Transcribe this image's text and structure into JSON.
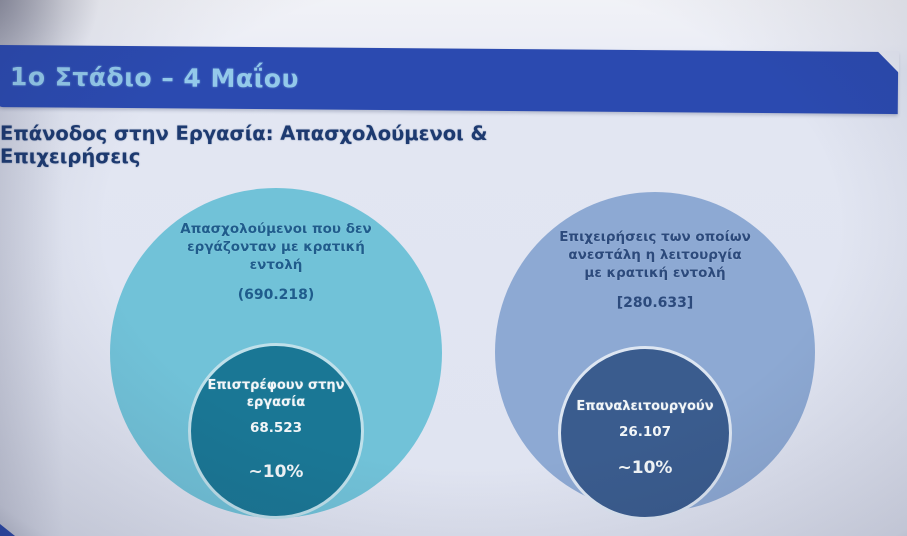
{
  "slide": {
    "title": "1ο Στάδιο – 4 Μαΐου",
    "subtitle": "Επάνοδος στην Εργασία: Απασχολούμενοι & Επιχειρήσεις"
  },
  "venn": {
    "left": {
      "outer_label_lines": [
        "Απασχολούμενοι που δεν",
        "εργάζονταν με κρατική",
        "εντολή"
      ],
      "outer_value": "(690.218)",
      "inner_label_lines": [
        "Επιστρέφουν στην",
        "εργασία"
      ],
      "inner_value": "68.523",
      "inner_share": "~10%"
    },
    "right": {
      "outer_label_lines": [
        "Επιχειρήσεις των οποίων",
        "ανεστάλη η λειτουργία",
        "με κρατική εντολή"
      ],
      "outer_value": "[280.633]",
      "inner_label_lines": [
        "Επαναλειτουργούν"
      ],
      "inner_value": "26.107",
      "inner_share": "~10%"
    }
  },
  "colors": {
    "title_bar": "#2b4ab0",
    "title_text": "#93c9ea",
    "subtitle_text": "#1d3a70",
    "left_outer_circle": "#71c2d8",
    "left_inner_circle": "#1a7795",
    "left_outer_text": "#1f5c8c",
    "right_outer_circle": "#8da9d3",
    "right_inner_circle": "#3a5c8e",
    "right_outer_text": "#2c4a7c",
    "inner_text": "#f2f6f8"
  },
  "chart_data": {
    "type": "nested-circles",
    "title": "Επάνοδος στην Εργασία: Απασχολούμενοι & Επιχειρήσεις",
    "subtitle": "1ο Στάδιο – 4 Μαΐου",
    "legend_position": "none",
    "groups": [
      {
        "outer_label": "Απασχολούμενοι που δεν εργάζονταν με κρατική εντολή",
        "outer_value": 690218,
        "outer_value_display": "(690.218)",
        "inner_label": "Επιστρέφουν στην εργασία",
        "inner_value": 68523,
        "inner_value_display": "68.523",
        "inner_share_display": "~10%",
        "outer_color": "#71c2d8",
        "inner_color": "#1a7795"
      },
      {
        "outer_label": "Επιχειρήσεις των οποίων ανεστάλη η λειτουργία με κρατική εντολή",
        "outer_value": 280633,
        "outer_value_display": "[280.633]",
        "inner_label": "Επαναλειτουργούν",
        "inner_value": 26107,
        "inner_value_display": "26.107",
        "inner_share_display": "~10%",
        "outer_color": "#8da9d3",
        "inner_color": "#3a5c8e"
      }
    ]
  }
}
